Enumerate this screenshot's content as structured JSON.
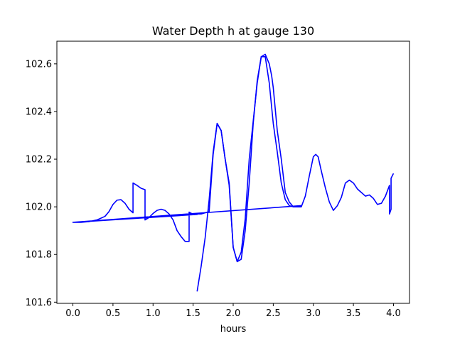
{
  "chart_data": {
    "type": "line",
    "title": "Water Depth h at gauge 130",
    "xlabel": "hours",
    "ylabel": "",
    "xlim": [
      -0.2,
      4.2
    ],
    "ylim": [
      101.595,
      102.695
    ],
    "x_ticks": [
      0.0,
      0.5,
      1.0,
      1.5,
      2.0,
      2.5,
      3.0,
      3.5,
      4.0
    ],
    "x_tick_labels": [
      "0.0",
      "0.5",
      "1.0",
      "1.5",
      "2.0",
      "2.5",
      "3.0",
      "3.5",
      "4.0"
    ],
    "y_ticks": [
      101.6,
      101.8,
      102.0,
      102.2,
      102.4,
      102.6
    ],
    "y_tick_labels": [
      "101.6",
      "101.8",
      "102.0",
      "102.2",
      "102.4",
      "102.6"
    ],
    "grid": false,
    "series": [
      {
        "color": "#0000ff",
        "x": [
          0.0,
          0.1,
          0.2,
          0.3,
          0.4,
          0.45,
          0.5,
          0.55,
          0.6,
          0.65,
          0.7,
          0.75,
          0.75,
          0.8,
          0.85,
          0.9,
          0.9,
          0.95,
          1.0,
          1.05,
          1.1,
          1.15,
          1.2,
          1.25,
          1.3,
          1.35,
          1.4,
          1.45,
          1.45,
          1.5,
          1.55,
          0.0,
          2.85,
          2.85,
          2.9,
          2.95,
          3.0,
          3.03,
          3.06,
          3.1,
          3.15,
          3.2,
          3.25,
          3.3,
          3.35,
          3.4,
          3.45,
          3.5,
          3.55,
          3.6,
          3.65,
          3.7,
          3.75,
          3.8,
          3.85,
          3.9,
          3.95,
          3.95,
          3.97,
          3.97,
          4.0
        ],
        "y": [
          101.935,
          101.935,
          101.938,
          101.945,
          101.96,
          101.98,
          102.01,
          102.028,
          102.03,
          102.015,
          101.99,
          101.975,
          102.1,
          102.09,
          102.078,
          102.072,
          101.945,
          101.955,
          101.972,
          101.985,
          101.99,
          101.985,
          101.97,
          101.945,
          101.9,
          101.875,
          101.855,
          101.855,
          101.978,
          101.968,
          101.968,
          101.935,
          102.005,
          102.0,
          102.045,
          102.13,
          102.21,
          102.22,
          102.21,
          102.15,
          102.08,
          102.02,
          101.985,
          102.005,
          102.04,
          102.1,
          102.112,
          102.1,
          102.075,
          102.06,
          102.045,
          102.05,
          102.035,
          102.01,
          102.015,
          102.045,
          102.09,
          101.97,
          101.99,
          102.12,
          102.14
        ]
      },
      {
        "color": "#0000ff",
        "x": [
          1.45,
          1.5,
          1.6,
          1.7,
          1.75,
          1.8,
          1.85,
          1.9,
          1.95,
          2.0,
          2.05,
          2.1,
          2.15,
          2.2,
          2.25,
          2.3,
          2.35,
          2.4,
          2.45,
          2.5,
          2.55,
          2.6,
          2.65,
          2.7,
          2.75,
          2.8,
          2.85
        ],
        "y": [
          101.975,
          101.97,
          101.97,
          101.98,
          102.22,
          102.35,
          102.32,
          102.2,
          102.1,
          101.83,
          101.77,
          101.81,
          101.95,
          102.2,
          102.36,
          102.52,
          102.63,
          102.63,
          102.52,
          102.35,
          102.23,
          102.1,
          102.03,
          102.005,
          102.0,
          102.0,
          102.005
        ]
      },
      {
        "color": "#0000ff",
        "x": [
          1.55,
          1.6,
          1.65,
          1.7,
          1.75,
          1.8,
          1.85,
          1.9,
          1.95,
          2.0,
          2.05,
          2.1,
          2.15,
          2.2,
          2.25,
          2.3,
          2.35,
          2.4,
          2.45,
          2.48,
          2.5,
          2.55,
          2.6,
          2.65,
          2.7,
          2.75,
          2.8,
          2.85
        ],
        "y": [
          101.645,
          101.75,
          101.87,
          102.03,
          102.23,
          102.35,
          102.32,
          102.2,
          102.09,
          101.83,
          101.77,
          101.78,
          101.9,
          102.1,
          102.35,
          102.53,
          102.63,
          102.64,
          102.6,
          102.55,
          102.5,
          102.32,
          102.2,
          102.06,
          102.02,
          102.0,
          102.0,
          102.0
        ]
      }
    ]
  }
}
